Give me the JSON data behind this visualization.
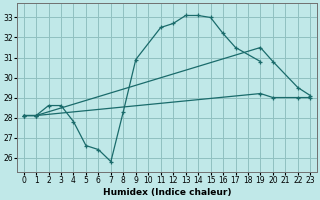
{
  "xlabel": "Humidex (Indice chaleur)",
  "background_color": "#c0e8e8",
  "grid_color": "#90c0c0",
  "line_color": "#1a6b6b",
  "x_ticks": [
    0,
    1,
    2,
    3,
    4,
    5,
    6,
    7,
    8,
    9,
    10,
    11,
    12,
    13,
    14,
    15,
    16,
    17,
    18,
    19,
    20,
    21,
    22,
    23
  ],
  "y_ticks": [
    26,
    27,
    28,
    29,
    30,
    31,
    32,
    33
  ],
  "ylim": [
    25.3,
    33.7
  ],
  "xlim": [
    -0.5,
    23.5
  ],
  "curve1_x": [
    0,
    1,
    2,
    3,
    4,
    5,
    6,
    7,
    8,
    9,
    11,
    12,
    13,
    14,
    15,
    16,
    17,
    19
  ],
  "curve1_y": [
    28.1,
    28.1,
    28.6,
    28.6,
    27.8,
    26.6,
    26.4,
    25.8,
    28.3,
    30.9,
    32.5,
    32.7,
    33.1,
    33.1,
    33.0,
    32.2,
    31.5,
    30.8
  ],
  "curve2_x": [
    0,
    1,
    19,
    20,
    22,
    23
  ],
  "curve2_y": [
    28.1,
    28.1,
    31.5,
    30.8,
    29.5,
    29.1
  ],
  "curve3_x": [
    0,
    1,
    19,
    20,
    22,
    23
  ],
  "curve3_y": [
    28.1,
    28.1,
    29.2,
    29.0,
    29.0,
    29.0
  ]
}
